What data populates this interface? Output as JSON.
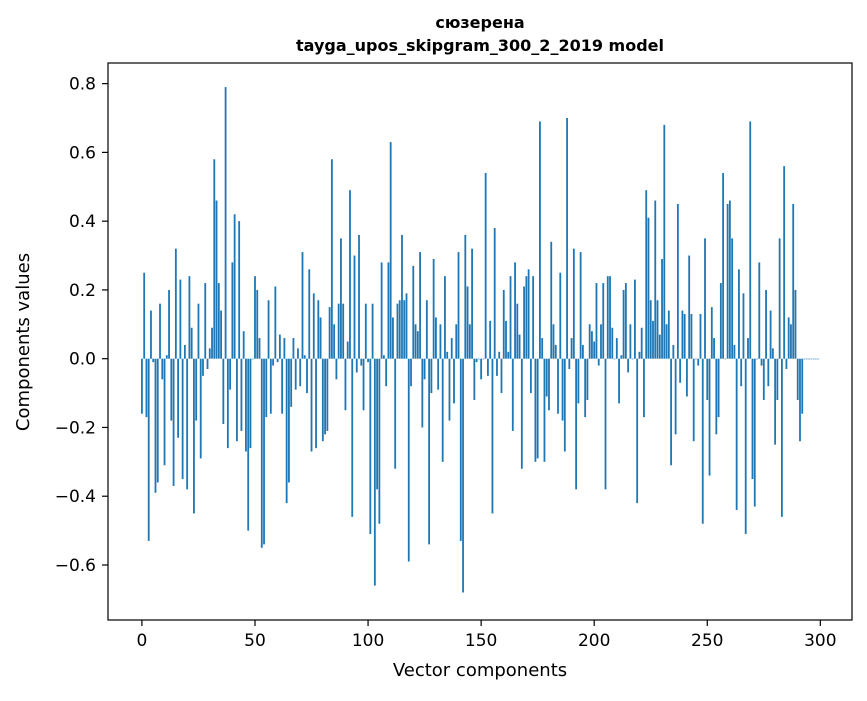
{
  "chart_data": {
    "type": "bar",
    "title": "сюзерена",
    "subtitle": "tayga_upos_skipgram_300_2_2019 model",
    "xlabel": "Vector components",
    "ylabel": "Components values",
    "xlim": [
      -15,
      314
    ],
    "ylim": [
      -0.76,
      0.86
    ],
    "xticks": [
      0,
      50,
      100,
      150,
      200,
      250,
      300
    ],
    "xtick_labels": [
      "0",
      "50",
      "100",
      "150",
      "200",
      "250",
      "300"
    ],
    "yticks": [
      -0.6,
      -0.4,
      -0.2,
      0.0,
      0.2,
      0.4,
      0.6,
      0.8
    ],
    "ytick_labels": [
      "−0.6",
      "−0.4",
      "−0.2",
      "0.0",
      "0.2",
      "0.4",
      "0.6",
      "0.8"
    ],
    "bar_color": "#1f77b4",
    "grid": false,
    "legend": "none",
    "values": [
      -0.16,
      0.25,
      -0.17,
      -0.53,
      0.14,
      -0.01,
      -0.39,
      -0.36,
      0.16,
      -0.06,
      -0.31,
      0.01,
      0.2,
      -0.18,
      -0.37,
      0.32,
      -0.23,
      0.23,
      -0.35,
      0.04,
      -0.38,
      0.24,
      0.09,
      -0.45,
      -0.18,
      0.16,
      -0.29,
      -0.05,
      0.22,
      -0.03,
      0.03,
      0.09,
      0.58,
      0.46,
      0.22,
      0.14,
      -0.19,
      0.79,
      -0.26,
      -0.09,
      0.28,
      0.42,
      -0.24,
      0.4,
      -0.21,
      0.08,
      -0.27,
      -0.5,
      -0.26,
      0.0,
      0.24,
      0.2,
      0.06,
      -0.55,
      -0.54,
      -0.17,
      0.17,
      -0.16,
      -0.02,
      0.21,
      -0.01,
      0.07,
      -0.16,
      0.06,
      -0.42,
      -0.36,
      -0.14,
      0.06,
      -0.09,
      0.03,
      -0.08,
      0.31,
      0.01,
      -0.1,
      0.26,
      -0.27,
      0.19,
      -0.26,
      0.17,
      0.12,
      -0.24,
      -0.22,
      -0.21,
      0.15,
      0.58,
      0.1,
      -0.06,
      0.16,
      0.35,
      0.16,
      -0.15,
      0.05,
      0.49,
      -0.46,
      0.3,
      -0.04,
      0.36,
      -0.02,
      -0.15,
      0.16,
      -0.01,
      -0.51,
      0.16,
      -0.66,
      -0.38,
      -0.48,
      0.28,
      0.01,
      -0.08,
      0.28,
      0.63,
      0.12,
      -0.32,
      0.16,
      0.17,
      0.36,
      0.17,
      0.19,
      -0.59,
      -0.08,
      0.27,
      0.1,
      0.08,
      0.31,
      -0.2,
      -0.06,
      0.17,
      -0.54,
      -0.1,
      0.29,
      0.12,
      -0.09,
      0.1,
      -0.3,
      0.24,
      0.02,
      -0.18,
      0.06,
      -0.13,
      0.1,
      0.31,
      -0.53,
      -0.68,
      0.36,
      0.21,
      0.1,
      0.32,
      -0.12,
      -0.01,
      0.0,
      -0.06,
      0.0,
      0.54,
      -0.05,
      0.11,
      -0.45,
      0.38,
      -0.05,
      0.02,
      -0.1,
      0.2,
      0.11,
      0.02,
      0.24,
      -0.21,
      0.28,
      0.16,
      0.07,
      -0.32,
      0.21,
      0.24,
      0.26,
      -0.1,
      0.24,
      -0.3,
      -0.29,
      0.69,
      0.06,
      -0.3,
      -0.11,
      -0.15,
      0.34,
      0.1,
      0.04,
      -0.16,
      0.25,
      -0.18,
      -0.27,
      0.7,
      -0.03,
      0.06,
      0.32,
      -0.38,
      -0.13,
      0.31,
      0.04,
      -0.17,
      -0.12,
      0.1,
      0.08,
      0.05,
      0.22,
      -0.02,
      0.1,
      0.22,
      -0.38,
      0.24,
      0.24,
      0.09,
      0.0,
      0.06,
      -0.13,
      0.01,
      0.2,
      0.22,
      -0.04,
      0.1,
      0.0,
      0.23,
      -0.42,
      0.02,
      0.09,
      -0.17,
      0.49,
      0.41,
      0.17,
      0.11,
      0.46,
      0.17,
      0.07,
      0.29,
      0.68,
      0.1,
      0.14,
      -0.31,
      0.04,
      -0.22,
      0.45,
      -0.07,
      0.14,
      0.13,
      -0.11,
      0.3,
      0.13,
      -0.24,
      0.0,
      -0.02,
      0.13,
      -0.48,
      0.35,
      -0.12,
      -0.34,
      0.15,
      0.06,
      -0.22,
      -0.17,
      0.22,
      0.54,
      0.0,
      0.45,
      0.46,
      0.35,
      0.04,
      -0.44,
      0.26,
      -0.08,
      0.19,
      -0.51,
      0.06,
      0.69,
      -0.35,
      -0.43,
      0.0,
      0.28,
      -0.02,
      -0.12,
      0.2,
      -0.08,
      0.14,
      0.03,
      -0.25,
      -0.12,
      0.35,
      -0.46,
      0.56,
      -0.03,
      0.12,
      0.1,
      0.45,
      0.2,
      -0.12,
      -0.24,
      -0.16,
      0.0,
      0.0,
      0.0,
      0.0,
      0.0,
      0.0,
      0.0
    ]
  }
}
